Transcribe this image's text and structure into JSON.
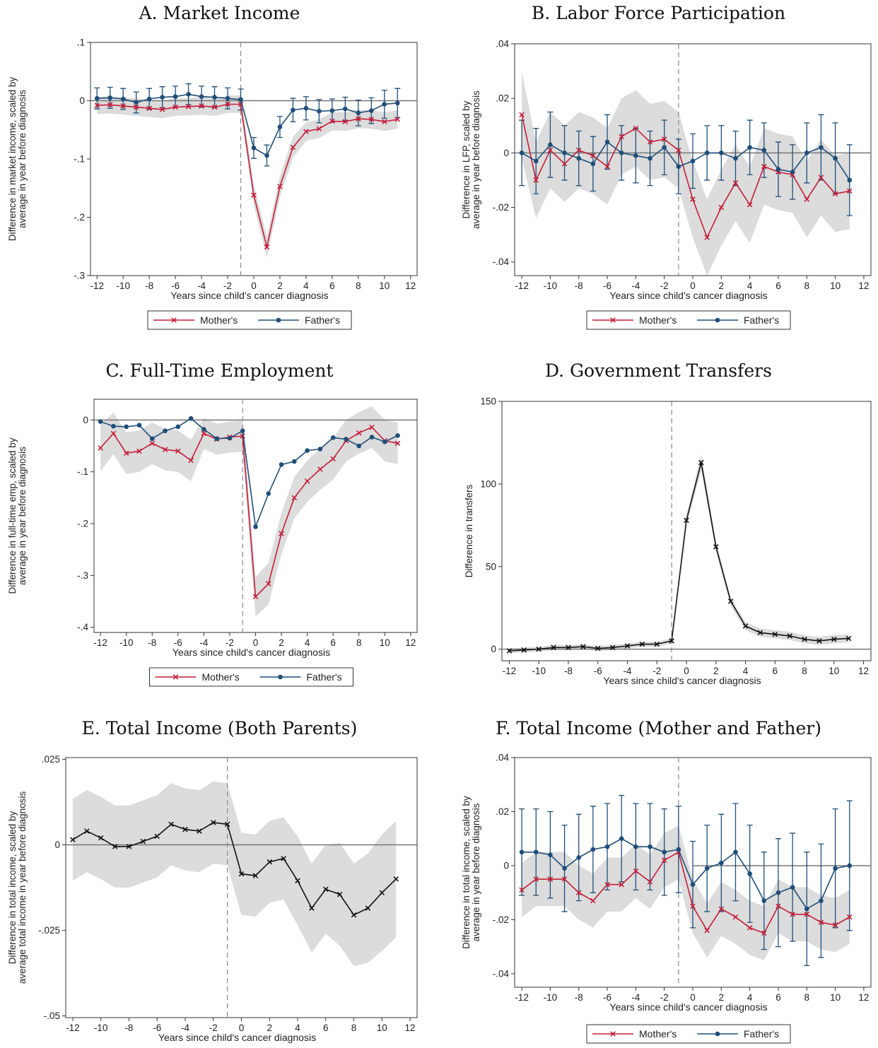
{
  "colors": {
    "mother": "#c41e3a",
    "father": "#1f4e79",
    "single": "#111111",
    "band": "#dcdcdc"
  },
  "chart_data": [
    {
      "id": "A",
      "type": "line",
      "title": "A. Market Income",
      "xlabel": "Years since child's cancer diagnosis",
      "ylabel": [
        "Difference in market income, scaled by",
        "average  in year before diagnosis"
      ],
      "xlim": [
        -12.5,
        12.5
      ],
      "xticks": [
        -12,
        -10,
        -8,
        -6,
        -4,
        -2,
        0,
        2,
        4,
        6,
        8,
        10,
        12
      ],
      "ylim": [
        -0.3,
        0.1
      ],
      "yticks": [
        0.1,
        0,
        -0.1,
        -0.2,
        -0.3
      ],
      "yticklabels": [
        ".1",
        "0",
        "-.1",
        "-.2",
        "-.3"
      ],
      "legend": "bottom",
      "x": [
        -12,
        -11,
        -10,
        -9,
        -8,
        -7,
        -6,
        -5,
        -4,
        -3,
        -2,
        -1,
        0,
        1,
        2,
        3,
        4,
        5,
        6,
        7,
        8,
        9,
        10,
        11
      ],
      "series": [
        {
          "name": "Mother's",
          "values": [
            -0.008,
            -0.007,
            -0.009,
            -0.011,
            -0.013,
            -0.015,
            -0.011,
            -0.01,
            -0.009,
            -0.011,
            -0.006,
            -0.006,
            -0.162,
            -0.251,
            -0.147,
            -0.08,
            -0.053,
            -0.048,
            -0.035,
            -0.036,
            -0.031,
            -0.032,
            -0.036,
            -0.032
          ],
          "band": [
            0.015,
            0.015,
            0.015,
            0.015,
            0.015,
            0.015,
            0.015,
            0.015,
            0.015,
            0.015,
            0.015,
            0.015,
            0.018,
            0.018,
            0.018,
            0.018,
            0.016,
            0.016,
            0.016,
            0.016,
            0.016,
            0.016,
            0.016,
            0.016
          ]
        },
        {
          "name": "Father's",
          "values": [
            0.004,
            0.005,
            0.003,
            -0.003,
            0.003,
            0.006,
            0.007,
            0.011,
            0.007,
            0.006,
            0.004,
            0.002,
            -0.081,
            -0.094,
            -0.045,
            -0.016,
            -0.013,
            -0.018,
            -0.017,
            -0.014,
            -0.021,
            -0.017,
            -0.006,
            -0.004
          ],
          "ci": [
            0.018,
            0.018,
            0.018,
            0.018,
            0.018,
            0.018,
            0.018,
            0.018,
            0.018,
            0.018,
            0.018,
            0.018,
            0.018,
            0.018,
            0.018,
            0.02,
            0.02,
            0.02,
            0.02,
            0.02,
            0.022,
            0.022,
            0.024,
            0.025
          ]
        }
      ]
    },
    {
      "id": "B",
      "type": "line",
      "title": "B. Labor Force Participation",
      "xlabel": "Years since child's cancer diagnosis",
      "ylabel": [
        "Difference in LFP, scaled by",
        "average  in year before diagnosis"
      ],
      "xlim": [
        -12.5,
        12.5
      ],
      "xticks": [
        -12,
        -10,
        -8,
        -6,
        -4,
        -2,
        0,
        2,
        4,
        6,
        8,
        10,
        12
      ],
      "ylim": [
        -0.045,
        0.04
      ],
      "yticks": [
        0.04,
        0.02,
        0,
        -0.02,
        -0.04
      ],
      "yticklabels": [
        ".04",
        ".02",
        "0",
        "-.02",
        "-.04"
      ],
      "legend": "bottom",
      "x": [
        -12,
        -11,
        -10,
        -9,
        -8,
        -7,
        -6,
        -5,
        -4,
        -3,
        -2,
        -1,
        0,
        1,
        2,
        3,
        4,
        5,
        6,
        7,
        8,
        9,
        10,
        11
      ],
      "series": [
        {
          "name": "Mother's",
          "values": [
            0.014,
            -0.01,
            0.001,
            -0.004,
            0.001,
            -0.001,
            -0.005,
            0.006,
            0.009,
            0.004,
            0.005,
            0.001,
            -0.017,
            -0.031,
            -0.02,
            -0.011,
            -0.019,
            -0.005,
            -0.007,
            -0.008,
            -0.017,
            -0.009,
            -0.015,
            -0.014
          ],
          "band": [
            0.016,
            0.014,
            0.014,
            0.014,
            0.014,
            0.014,
            0.014,
            0.014,
            0.014,
            0.014,
            0.014,
            0.014,
            0.014,
            0.014,
            0.014,
            0.014,
            0.014,
            0.014,
            0.014,
            0.014,
            0.014,
            0.014,
            0.014,
            0.014
          ]
        },
        {
          "name": "Father's",
          "values": [
            0.0,
            -0.003,
            0.003,
            0.0,
            -0.002,
            -0.004,
            0.004,
            0.0,
            -0.001,
            -0.002,
            0.002,
            -0.005,
            -0.003,
            0.0,
            0.0,
            -0.002,
            0.002,
            0.001,
            -0.006,
            -0.007,
            0.0,
            0.002,
            -0.002,
            -0.01
          ],
          "ci": [
            0.012,
            0.012,
            0.012,
            0.01,
            0.01,
            0.01,
            0.01,
            0.01,
            0.01,
            0.01,
            0.01,
            0.01,
            0.01,
            0.01,
            0.01,
            0.01,
            0.01,
            0.01,
            0.01,
            0.01,
            0.011,
            0.012,
            0.013,
            0.013
          ]
        }
      ]
    },
    {
      "id": "C",
      "type": "line",
      "title": "C. Full-Time Employment",
      "xlabel": "Years since child's cancer diagnosis",
      "ylabel": [
        "Difference in full-time emp, scaled by",
        "average  in year before diagnosis"
      ],
      "xlim": [
        -12.5,
        12.5
      ],
      "xticks": [
        -12,
        -10,
        -8,
        -6,
        -4,
        -2,
        0,
        2,
        4,
        6,
        8,
        10,
        12
      ],
      "ylim": [
        -0.41,
        0.04
      ],
      "yticks": [
        0,
        -0.1,
        -0.2,
        -0.3,
        -0.4
      ],
      "yticklabels": [
        "0",
        "-.1",
        "-.2",
        "-.3",
        "-.4"
      ],
      "legend": "bottom",
      "x": [
        -12,
        -11,
        -10,
        -9,
        -8,
        -7,
        -6,
        -5,
        -4,
        -3,
        -2,
        -1,
        0,
        1,
        2,
        3,
        4,
        5,
        6,
        7,
        8,
        9,
        10,
        11
      ],
      "series": [
        {
          "name": "Mother's",
          "values": [
            -0.054,
            -0.026,
            -0.064,
            -0.06,
            -0.045,
            -0.057,
            -0.06,
            -0.078,
            -0.026,
            -0.037,
            -0.033,
            -0.031,
            -0.341,
            -0.316,
            -0.219,
            -0.15,
            -0.118,
            -0.095,
            -0.075,
            -0.04,
            -0.025,
            -0.014,
            -0.04,
            -0.045
          ],
          "band": [
            0.045,
            0.04,
            0.04,
            0.04,
            0.04,
            0.04,
            0.04,
            0.04,
            0.03,
            0.03,
            0.03,
            0.03,
            0.038,
            0.04,
            0.04,
            0.04,
            0.04,
            0.04,
            0.04,
            0.04,
            0.04,
            0.04,
            0.04,
            0.04
          ]
        },
        {
          "name": "Father's",
          "values": [
            -0.003,
            -0.012,
            -0.013,
            -0.01,
            -0.036,
            -0.021,
            -0.013,
            0.003,
            -0.018,
            -0.036,
            -0.035,
            -0.021,
            -0.206,
            -0.142,
            -0.086,
            -0.08,
            -0.059,
            -0.056,
            -0.034,
            -0.037,
            -0.05,
            -0.033,
            -0.042,
            -0.03
          ]
        }
      ]
    },
    {
      "id": "D",
      "type": "line",
      "title": "D. Government Transfers",
      "xlabel": "Years since child's cancer diagnosis",
      "ylabel": [
        "Difference in transfers"
      ],
      "xlim": [
        -12.5,
        12.5
      ],
      "xticks": [
        -12,
        -10,
        -8,
        -6,
        -4,
        -2,
        0,
        2,
        4,
        6,
        8,
        10,
        12
      ],
      "ylim": [
        -7,
        150
      ],
      "yticks": [
        150,
        100,
        50,
        0
      ],
      "yticklabels": [
        "150",
        "100",
        "50",
        "0"
      ],
      "legend": "none",
      "x": [
        -12,
        -11,
        -10,
        -9,
        -8,
        -7,
        -6,
        -5,
        -4,
        -3,
        -2,
        -1,
        0,
        1,
        2,
        3,
        4,
        5,
        6,
        7,
        8,
        9,
        10,
        11
      ],
      "series": [
        {
          "name": "",
          "values": [
            -1,
            -0.5,
            0,
            1,
            1,
            1.5,
            0.5,
            1,
            2,
            3,
            3,
            5,
            78,
            113,
            62,
            29,
            14,
            10,
            9,
            8,
            6,
            5,
            6,
            6.5
          ],
          "band": [
            1.5,
            1.5,
            1.5,
            1.5,
            1.5,
            1.5,
            1.5,
            1.5,
            1.5,
            1.5,
            1.5,
            1.5,
            3,
            5,
            3,
            2.5,
            2.5,
            2.5,
            2.5,
            2.5,
            2.5,
            2.5,
            2.5,
            2.5
          ]
        }
      ]
    },
    {
      "id": "E",
      "type": "line",
      "title": "E. Total Income (Both Parents)",
      "xlabel": "Years since child's cancer diagnosis",
      "ylabel": [
        "Difference in total income, scaled by",
        "average total income in year before diagnosis"
      ],
      "xlim": [
        -12.5,
        12.5
      ],
      "xticks": [
        -12,
        -10,
        -8,
        -6,
        -4,
        -2,
        0,
        2,
        4,
        6,
        8,
        10,
        12
      ],
      "ylim": [
        -0.0505,
        0.0255
      ],
      "yticks": [
        0.025,
        0,
        -0.025,
        -0.05
      ],
      "yticklabels": [
        ".025",
        "0",
        "-.025",
        "-.05"
      ],
      "legend": "none",
      "x": [
        -12,
        -11,
        -10,
        -9,
        -8,
        -7,
        -6,
        -5,
        -4,
        -3,
        -2,
        -1,
        0,
        1,
        2,
        3,
        4,
        5,
        6,
        7,
        8,
        9,
        10,
        11
      ],
      "series": [
        {
          "name": "",
          "values": [
            0.0015,
            0.004,
            0.002,
            -0.0005,
            -0.0005,
            0.001,
            0.0025,
            0.006,
            0.0045,
            0.004,
            0.0065,
            0.006,
            -0.0085,
            -0.009,
            -0.005,
            -0.004,
            -0.0105,
            -0.0185,
            -0.013,
            -0.0145,
            -0.0205,
            -0.0185,
            -0.014,
            -0.01
          ],
          "band": [
            0.012,
            0.012,
            0.012,
            0.012,
            0.012,
            0.012,
            0.012,
            0.012,
            0.012,
            0.012,
            0.012,
            0.012,
            0.012,
            0.012,
            0.012,
            0.012,
            0.013,
            0.013,
            0.013,
            0.015,
            0.015,
            0.016,
            0.017,
            0.017
          ]
        }
      ]
    },
    {
      "id": "F",
      "type": "line",
      "title": "F. Total Income (Mother and Father)",
      "xlabel": "Years since child's cancer diagnosis",
      "ylabel": [
        "Difference in total income, scaled by",
        "average  in year before diagnosis"
      ],
      "xlim": [
        -12.5,
        12.5
      ],
      "xticks": [
        -12,
        -10,
        -8,
        -6,
        -4,
        -2,
        0,
        2,
        4,
        6,
        8,
        10,
        12
      ],
      "ylim": [
        -0.045,
        0.04
      ],
      "yticks": [
        0.04,
        0.02,
        0,
        -0.02,
        -0.04
      ],
      "yticklabels": [
        ".04",
        ".02",
        "0",
        "-.02",
        "-.04"
      ],
      "legend": "bottom",
      "x": [
        -12,
        -11,
        -10,
        -9,
        -8,
        -7,
        -6,
        -5,
        -4,
        -3,
        -2,
        -1,
        0,
        1,
        2,
        3,
        4,
        5,
        6,
        7,
        8,
        9,
        10,
        11
      ],
      "series": [
        {
          "name": "Mother's",
          "values": [
            -0.009,
            -0.005,
            -0.005,
            -0.005,
            -0.01,
            -0.013,
            -0.007,
            -0.007,
            -0.002,
            -0.006,
            0.002,
            0.005,
            -0.015,
            -0.024,
            -0.016,
            -0.019,
            -0.023,
            -0.025,
            -0.015,
            -0.018,
            -0.018,
            -0.021,
            -0.022,
            -0.019
          ],
          "band": [
            0.01,
            0.01,
            0.01,
            0.01,
            0.01,
            0.01,
            0.01,
            0.01,
            0.01,
            0.01,
            0.01,
            0.01,
            0.01,
            0.01,
            0.01,
            0.01,
            0.01,
            0.01,
            0.01,
            0.01,
            0.01,
            0.01,
            0.01,
            0.01
          ]
        },
        {
          "name": "Father's",
          "values": [
            0.005,
            0.005,
            0.004,
            -0.001,
            0.003,
            0.006,
            0.007,
            0.01,
            0.007,
            0.007,
            0.005,
            0.006,
            -0.007,
            -0.001,
            0.001,
            0.005,
            -0.003,
            -0.013,
            -0.01,
            -0.008,
            -0.016,
            -0.013,
            -0.001,
            0.0
          ],
          "ci": [
            0.016,
            0.016,
            0.016,
            0.016,
            0.016,
            0.016,
            0.016,
            0.016,
            0.016,
            0.016,
            0.016,
            0.016,
            0.016,
            0.016,
            0.018,
            0.018,
            0.018,
            0.018,
            0.02,
            0.02,
            0.021,
            0.021,
            0.022,
            0.024
          ]
        }
      ]
    }
  ]
}
